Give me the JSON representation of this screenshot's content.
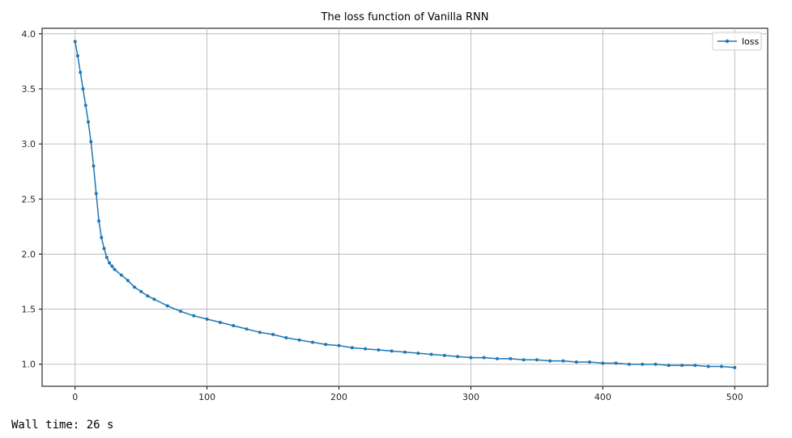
{
  "chart_data": {
    "type": "line",
    "title": "The loss function of Vanilla RNN",
    "xlabel": "",
    "ylabel": "",
    "xlim": [
      -25,
      525
    ],
    "ylim": [
      0.8,
      4.05
    ],
    "xticks": [
      0,
      100,
      200,
      300,
      400,
      500
    ],
    "xtick_labels": [
      "0",
      "100",
      "200",
      "300",
      "400",
      "500"
    ],
    "yticks": [
      1.0,
      1.5,
      2.0,
      2.5,
      3.0,
      3.5,
      4.0
    ],
    "ytick_labels": [
      "1.0",
      "1.5",
      "2.0",
      "2.5",
      "3.0",
      "3.5",
      "4.0"
    ],
    "grid": true,
    "legend_position": "top-right",
    "markers": "dot",
    "series": [
      {
        "name": "loss",
        "color": "#1f77b4",
        "x": [
          0,
          2,
          4,
          6,
          8,
          10,
          12,
          14,
          16,
          18,
          20,
          22,
          24,
          26,
          28,
          30,
          35,
          40,
          45,
          50,
          55,
          60,
          70,
          80,
          90,
          100,
          110,
          120,
          130,
          140,
          150,
          160,
          170,
          180,
          190,
          200,
          210,
          220,
          230,
          240,
          250,
          260,
          270,
          280,
          290,
          300,
          310,
          320,
          330,
          340,
          350,
          360,
          370,
          380,
          390,
          400,
          410,
          420,
          430,
          440,
          450,
          460,
          470,
          480,
          490,
          500
        ],
        "y": [
          3.93,
          3.8,
          3.65,
          3.5,
          3.35,
          3.2,
          3.02,
          2.8,
          2.55,
          2.3,
          2.15,
          2.05,
          1.97,
          1.92,
          1.89,
          1.86,
          1.81,
          1.76,
          1.7,
          1.66,
          1.62,
          1.59,
          1.53,
          1.48,
          1.44,
          1.41,
          1.38,
          1.35,
          1.32,
          1.29,
          1.27,
          1.24,
          1.22,
          1.2,
          1.18,
          1.17,
          1.15,
          1.14,
          1.13,
          1.12,
          1.11,
          1.1,
          1.09,
          1.08,
          1.07,
          1.06,
          1.06,
          1.05,
          1.05,
          1.04,
          1.04,
          1.03,
          1.03,
          1.02,
          1.02,
          1.01,
          1.01,
          1.0,
          1.0,
          1.0,
          0.99,
          0.99,
          0.99,
          0.98,
          0.98,
          0.97
        ]
      }
    ]
  },
  "output": {
    "wall_time": "Wall time: 26 s"
  }
}
